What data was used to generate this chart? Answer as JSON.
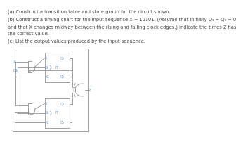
{
  "text_lines": [
    "(a) Construct a transition table and state graph for the circuit shown.",
    "(b) Construct a timing chart for the input sequence X = 10101. (Assume that initially Q₁ = Q₂ = 0",
    "and that X changes midway between the rising and falling clock edges.) Indicate the times Z has",
    "the correct value.",
    "(c) List the output values produced by the input sequence."
  ],
  "text_fontsize": 4.8,
  "text_color": "#444444",
  "bg_color": "#ffffff",
  "wire_color": "#888888",
  "label_color": "#7799bb",
  "Z_color": "#5599cc",
  "XClk_color": "#5599cc",
  "lw": 0.55
}
